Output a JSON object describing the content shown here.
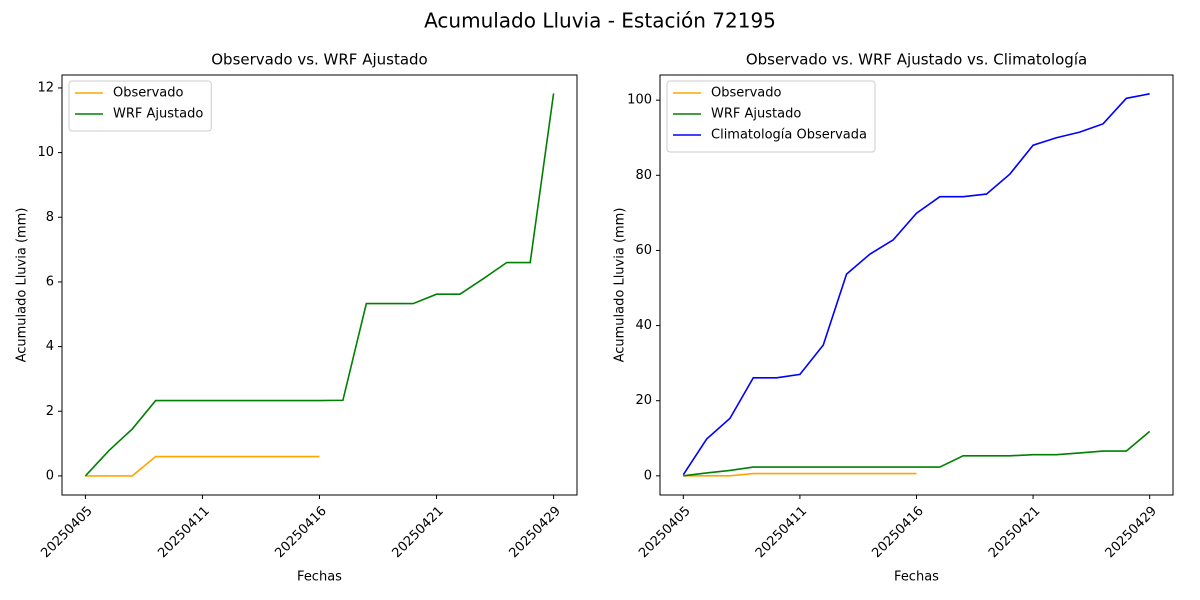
{
  "title": "Acumulado Lluvia - Estación 72195",
  "chart_data": [
    {
      "type": "line",
      "title": "Observado vs. WRF Ajustado",
      "xlabel": "Fechas",
      "ylabel": "Acumulado Lluvia (mm)",
      "categories": [
        "20250405",
        null,
        null,
        null,
        null,
        "20250411",
        null,
        null,
        null,
        null,
        "20250416",
        null,
        null,
        null,
        null,
        "20250421",
        null,
        null,
        null,
        null,
        "20250429"
      ],
      "series": [
        {
          "name": "Observado",
          "color": "orange",
          "values": [
            0,
            0,
            0,
            0.6,
            0.6,
            0.6,
            0.6,
            0.6,
            0.6,
            0.6,
            0.6,
            null,
            null,
            null,
            null,
            null,
            null,
            null,
            null,
            null,
            null
          ]
        },
        {
          "name": "WRF Ajustado",
          "color": "green",
          "values": [
            0,
            0.78,
            1.45,
            2.33,
            2.33,
            2.33,
            2.33,
            2.33,
            2.33,
            2.33,
            2.33,
            2.34,
            5.33,
            5.33,
            5.33,
            5.62,
            5.62,
            6.1,
            6.6,
            6.6,
            11.83
          ]
        }
      ],
      "ylim": [
        -0.59,
        12.4
      ],
      "yticks": [
        0,
        2,
        4,
        6,
        8,
        10,
        12
      ],
      "grid": false,
      "legend": "upper left"
    },
    {
      "type": "line",
      "title": "Observado vs. WRF Ajustado vs. Climatología",
      "xlabel": "Fechas",
      "ylabel": "Acumulado Lluvia (mm)",
      "categories": [
        "20250405",
        null,
        null,
        null,
        null,
        "20250411",
        null,
        null,
        null,
        null,
        "20250416",
        null,
        null,
        null,
        null,
        "20250421",
        null,
        null,
        null,
        null,
        "20250429"
      ],
      "series": [
        {
          "name": "Observado",
          "color": "orange",
          "values": [
            0,
            0,
            0,
            0.6,
            0.6,
            0.6,
            0.6,
            0.6,
            0.6,
            0.6,
            0.6,
            null,
            null,
            null,
            null,
            null,
            null,
            null,
            null,
            null,
            null
          ]
        },
        {
          "name": "WRF Ajustado",
          "color": "green",
          "values": [
            0,
            0.78,
            1.45,
            2.33,
            2.33,
            2.33,
            2.33,
            2.33,
            2.33,
            2.33,
            2.33,
            2.34,
            5.33,
            5.33,
            5.33,
            5.62,
            5.62,
            6.1,
            6.6,
            6.6,
            11.83
          ]
        },
        {
          "name": "Climatología Observada",
          "color": "blue",
          "values": [
            0.3,
            9.8,
            15.3,
            26.1,
            26.1,
            27,
            34.8,
            53.7,
            59,
            62.8,
            69.9,
            74.3,
            74.3,
            75,
            80.3,
            88,
            90,
            91.5,
            93.7,
            100.5,
            101.7
          ]
        }
      ],
      "ylim": [
        -5.1,
        106.7
      ],
      "yticks": [
        0,
        20,
        40,
        60,
        80,
        100
      ],
      "grid": false,
      "legend": "upper left"
    }
  ]
}
